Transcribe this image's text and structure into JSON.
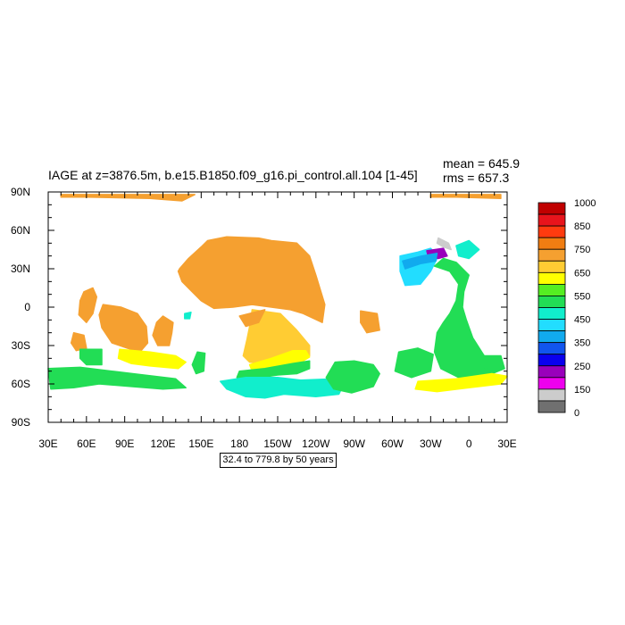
{
  "chart_data": {
    "type": "heatmap",
    "title": "IAGE at z=3876.5m, b.e15.B1850.f09_g16.pi_control.all.104 [1-45]",
    "stats": {
      "mean": "mean = 645.9",
      "rms": "rms = 657.3"
    },
    "range_note": "32.4 to 779.8 by 50 years",
    "x_ticks": [
      "30E",
      "60E",
      "90E",
      "120E",
      "150E",
      "180",
      "150W",
      "120W",
      "90W",
      "60W",
      "30W",
      "0",
      "30E"
    ],
    "y_ticks": [
      "90N",
      "60N",
      "30N",
      "0",
      "30S",
      "60S",
      "90S"
    ],
    "xlim": [
      30,
      390
    ],
    "ylim": [
      -90,
      90
    ],
    "colorbar": {
      "labels": [
        "1000",
        "850",
        "750",
        "650",
        "550",
        "450",
        "350",
        "250",
        "150",
        "0"
      ],
      "colors": [
        "#c00000",
        "#e8141c",
        "#ff3b0f",
        "#f07d12",
        "#f5a030",
        "#ffcc33",
        "#ffff00",
        "#55ee22",
        "#22dd55",
        "#11eecc",
        "#22ddff",
        "#11aaee",
        "#1155ee",
        "#0a00ee",
        "#9900bb",
        "#ee00ee",
        "#cccccc",
        "#707070"
      ]
    },
    "regions": [
      {
        "name": "arctic-pacific-ice-edge",
        "color": "#f5a030",
        "pts": [
          [
            40,
            88
          ],
          [
            145,
            88
          ],
          [
            135,
            83
          ],
          [
            110,
            85
          ],
          [
            60,
            86
          ],
          [
            40,
            86
          ]
        ]
      },
      {
        "name": "arctic-atlantic-ice-edge",
        "color": "#f5a030",
        "pts": [
          [
            330,
            88
          ],
          [
            385,
            88
          ],
          [
            385,
            85
          ],
          [
            350,
            86
          ],
          [
            330,
            86
          ]
        ]
      },
      {
        "name": "north-pacific",
        "color": "#f5a030",
        "pts": [
          [
            133,
            30
          ],
          [
            140,
            38
          ],
          [
            150,
            47
          ],
          [
            155,
            52
          ],
          [
            170,
            55
          ],
          [
            195,
            54
          ],
          [
            205,
            52
          ],
          [
            225,
            50
          ],
          [
            235,
            40
          ],
          [
            240,
            25
          ],
          [
            247,
            2
          ],
          [
            245,
            -12
          ],
          [
            230,
            -5
          ],
          [
            220,
            -2
          ],
          [
            205,
            0
          ],
          [
            190,
            2
          ],
          [
            175,
            0
          ],
          [
            160,
            -1
          ],
          [
            150,
            5
          ],
          [
            143,
            12
          ],
          [
            135,
            20
          ],
          [
            132,
            28
          ]
        ]
      },
      {
        "name": "east-pacific-rise",
        "color": "#ffcc33",
        "pts": [
          [
            190,
            -2
          ],
          [
            212,
            -5
          ],
          [
            225,
            -18
          ],
          [
            235,
            -30
          ],
          [
            235,
            -38
          ],
          [
            220,
            -42
          ],
          [
            205,
            -45
          ],
          [
            188,
            -43
          ],
          [
            183,
            -38
          ],
          [
            186,
            -25
          ],
          [
            188,
            -15
          ]
        ]
      },
      {
        "name": "south-pacific-deep",
        "color": "#f5a030",
        "pts": [
          [
            180,
            -7
          ],
          [
            200,
            -2
          ],
          [
            195,
            -12
          ],
          [
            185,
            -15
          ]
        ]
      },
      {
        "name": "south-pacific-yellow",
        "color": "#ffff00",
        "pts": [
          [
            188,
            -45
          ],
          [
            205,
            -40
          ],
          [
            222,
            -34
          ],
          [
            232,
            -34
          ],
          [
            235,
            -39
          ],
          [
            225,
            -45
          ],
          [
            205,
            -49
          ],
          [
            190,
            -50
          ]
        ]
      },
      {
        "name": "south-pacific-green-band",
        "color": "#22dd55",
        "pts": [
          [
            180,
            -50
          ],
          [
            200,
            -48
          ],
          [
            222,
            -44
          ],
          [
            235,
            -42
          ],
          [
            235,
            -48
          ],
          [
            225,
            -52
          ],
          [
            210,
            -53
          ],
          [
            190,
            -56
          ],
          [
            178,
            -55
          ]
        ]
      },
      {
        "name": "southern-ocean-pacific-cyan",
        "color": "#11eecc",
        "pts": [
          [
            165,
            -58
          ],
          [
            185,
            -55
          ],
          [
            210,
            -55
          ],
          [
            228,
            -57
          ],
          [
            255,
            -56
          ],
          [
            262,
            -60
          ],
          [
            258,
            -68
          ],
          [
            240,
            -70
          ],
          [
            215,
            -68
          ],
          [
            200,
            -71
          ],
          [
            185,
            -70
          ],
          [
            170,
            -64
          ]
        ]
      },
      {
        "name": "se-pacific-green",
        "color": "#22dd55",
        "pts": [
          [
            255,
            -43
          ],
          [
            270,
            -42
          ],
          [
            285,
            -45
          ],
          [
            290,
            -52
          ],
          [
            285,
            -62
          ],
          [
            268,
            -67
          ],
          [
            254,
            -64
          ],
          [
            248,
            -55
          ]
        ]
      },
      {
        "name": "indian-ocean-west",
        "color": "#f5a030",
        "pts": [
          [
            73,
            2
          ],
          [
            87,
            0
          ],
          [
            100,
            -5
          ],
          [
            107,
            -15
          ],
          [
            108,
            -28
          ],
          [
            102,
            -35
          ],
          [
            92,
            -32
          ],
          [
            80,
            -28
          ],
          [
            72,
            -16
          ],
          [
            70,
            -6
          ]
        ]
      },
      {
        "name": "arabian-sea",
        "color": "#f5a030",
        "pts": [
          [
            58,
            12
          ],
          [
            65,
            15
          ],
          [
            68,
            8
          ],
          [
            65,
            -5
          ],
          [
            60,
            -12
          ],
          [
            54,
            -6
          ],
          [
            55,
            5
          ]
        ]
      },
      {
        "name": "mozambique-basin",
        "color": "#f5a030",
        "pts": [
          [
            50,
            -20
          ],
          [
            58,
            -22
          ],
          [
            60,
            -32
          ],
          [
            52,
            -34
          ],
          [
            48,
            -28
          ]
        ]
      },
      {
        "name": "indian-ocean-east",
        "color": "#f5a030",
        "pts": [
          [
            120,
            -7
          ],
          [
            128,
            -12
          ],
          [
            127,
            -20
          ],
          [
            125,
            -30
          ],
          [
            116,
            -30
          ],
          [
            112,
            -22
          ],
          [
            115,
            -12
          ]
        ]
      },
      {
        "name": "indian-ocean-south-yellow",
        "color": "#ffff00",
        "pts": [
          [
            86,
            -33
          ],
          [
            110,
            -35
          ],
          [
            130,
            -38
          ],
          [
            138,
            -43
          ],
          [
            132,
            -48
          ],
          [
            110,
            -46
          ],
          [
            95,
            -44
          ],
          [
            85,
            -40
          ]
        ]
      },
      {
        "name": "indian-ocean-green-west",
        "color": "#22dd55",
        "pts": [
          [
            55,
            -33
          ],
          [
            72,
            -33
          ],
          [
            72,
            -45
          ],
          [
            60,
            -45
          ],
          [
            55,
            -40
          ]
        ]
      },
      {
        "name": "southern-ocean-indian-green",
        "color": "#22dd55",
        "pts": [
          [
            30,
            -48
          ],
          [
            55,
            -47
          ],
          [
            80,
            -50
          ],
          [
            105,
            -53
          ],
          [
            130,
            -56
          ],
          [
            138,
            -63
          ],
          [
            120,
            -64
          ],
          [
            95,
            -62
          ],
          [
            70,
            -60
          ],
          [
            50,
            -63
          ],
          [
            32,
            -64
          ]
        ]
      },
      {
        "name": "kerguelen-green",
        "color": "#22dd55",
        "pts": [
          [
            147,
            -35
          ],
          [
            153,
            -36
          ],
          [
            152,
            -50
          ],
          [
            146,
            -52
          ],
          [
            143,
            -45
          ]
        ]
      },
      {
        "name": "tasman-spot",
        "color": "#11eecc",
        "pts": [
          [
            137,
            -5
          ],
          [
            142,
            -4
          ],
          [
            141,
            -9
          ],
          [
            137,
            -9
          ]
        ]
      },
      {
        "name": "north-atlantic-cyan",
        "color": "#22ddff",
        "pts": [
          [
            306,
            40
          ],
          [
            320,
            43
          ],
          [
            330,
            46
          ],
          [
            336,
            40
          ],
          [
            330,
            28
          ],
          [
            322,
            18
          ],
          [
            310,
            17
          ],
          [
            306,
            28
          ]
        ]
      },
      {
        "name": "norwegian-sea",
        "color": "#9900bb",
        "pts": [
          [
            327,
            44
          ],
          [
            340,
            46
          ],
          [
            343,
            40
          ],
          [
            336,
            38
          ],
          [
            328,
            40
          ]
        ]
      },
      {
        "name": "iceland-gray",
        "color": "#cccccc",
        "pts": [
          [
            336,
            54
          ],
          [
            344,
            50
          ],
          [
            346,
            45
          ],
          [
            340,
            47
          ],
          [
            335,
            50
          ]
        ]
      },
      {
        "name": "north-atlantic-deep",
        "color": "#11aaee",
        "pts": [
          [
            308,
            36
          ],
          [
            323,
            40
          ],
          [
            335,
            42
          ],
          [
            334,
            36
          ],
          [
            322,
            34
          ],
          [
            310,
            30
          ]
        ]
      },
      {
        "name": "labrador-cyan",
        "color": "#11eecc",
        "pts": [
          [
            350,
            48
          ],
          [
            360,
            52
          ],
          [
            368,
            45
          ],
          [
            360,
            38
          ],
          [
            352,
            40
          ]
        ]
      },
      {
        "name": "atlantic-green",
        "color": "#22dd55",
        "pts": [
          [
            333,
            32
          ],
          [
            345,
            28
          ],
          [
            352,
            18
          ],
          [
            350,
            5
          ],
          [
            345,
            -5
          ],
          [
            340,
            -12
          ],
          [
            335,
            -20
          ],
          [
            333,
            -35
          ],
          [
            338,
            -48
          ],
          [
            352,
            -55
          ],
          [
            370,
            -58
          ],
          [
            380,
            -50
          ],
          [
            372,
            -38
          ],
          [
            363,
            -24
          ],
          [
            358,
            -10
          ],
          [
            355,
            0
          ],
          [
            356,
            12
          ],
          [
            360,
            25
          ],
          [
            350,
            35
          ],
          [
            340,
            38
          ]
        ]
      },
      {
        "name": "brazil-basin-green",
        "color": "#22dd55",
        "pts": [
          [
            305,
            -35
          ],
          [
            320,
            -32
          ],
          [
            332,
            -37
          ],
          [
            330,
            -50
          ],
          [
            315,
            -55
          ],
          [
            302,
            -50
          ]
        ]
      },
      {
        "name": "cape-basin-green",
        "color": "#22dd55",
        "pts": [
          [
            372,
            -38
          ],
          [
            385,
            -38
          ],
          [
            388,
            -48
          ],
          [
            378,
            -52
          ],
          [
            370,
            -45
          ]
        ]
      },
      {
        "name": "weddell-yellow",
        "color": "#ffff00",
        "pts": [
          [
            320,
            -58
          ],
          [
            350,
            -56
          ],
          [
            378,
            -52
          ],
          [
            390,
            -54
          ],
          [
            385,
            -60
          ],
          [
            360,
            -63
          ],
          [
            335,
            -66
          ],
          [
            318,
            -64
          ]
        ]
      },
      {
        "name": "angola-deep",
        "color": "#f5a030",
        "pts": [
          [
            275,
            -3
          ],
          [
            288,
            -5
          ],
          [
            290,
            -18
          ],
          [
            280,
            -20
          ],
          [
            275,
            -12
          ]
        ]
      }
    ]
  }
}
